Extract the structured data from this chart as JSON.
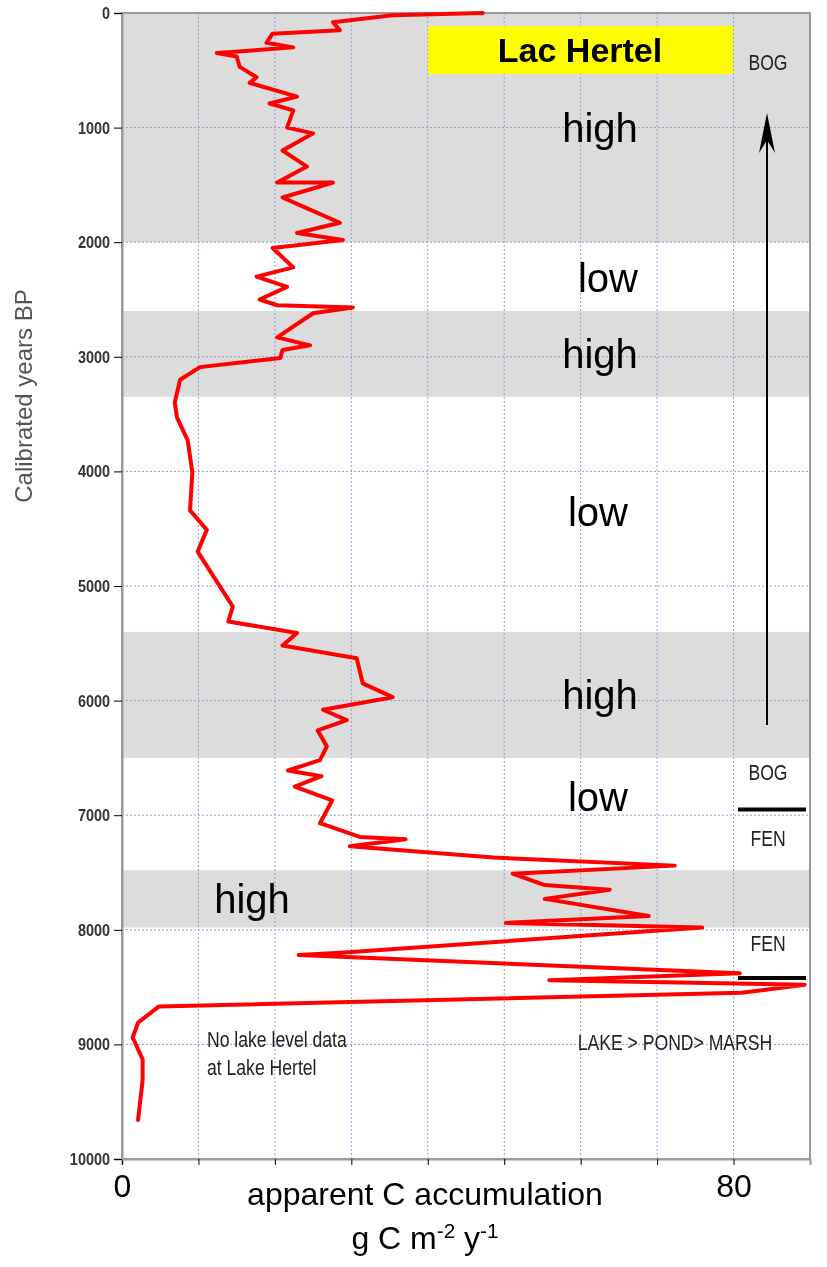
{
  "chart_data": {
    "type": "line",
    "title": "Lac Hertel",
    "xlabel": "apparent C accumulation\ng C m$^{-2}$ y$^{-1}$",
    "ylabel": "Calibrated years BP",
    "xlim": [
      0,
      90
    ],
    "xticks": [
      0,
      {
        "value": 10,
        "label": null
      },
      {
        "value": 20,
        "label": null
      },
      {
        "value": 30,
        "label": null
      },
      {
        "value": 40,
        "label": null
      },
      {
        "value": 50,
        "label": null
      },
      {
        "value": 60,
        "label": null
      },
      {
        "value": 70,
        "label": null
      },
      80
    ],
    "ylim": [
      10000,
      0
    ],
    "yticks": [
      0,
      1000,
      2000,
      3000,
      4000,
      5000,
      6000,
      7000,
      8000,
      9000,
      10000
    ],
    "grid": true,
    "series": [
      {
        "color": "#ff0000",
        "x": [
          47.2,
          35.4,
          27.6,
          28.5,
          19.7,
          18.9,
          22.4,
          12.4,
          15,
          15.4,
          17.6,
          16.7,
          22.9,
          19.3,
          22.4,
          21.6,
          25,
          21,
          24.2,
          20.3,
          27.6,
          21,
          23.7,
          28.5,
          22.9,
          28.9,
          19.7,
          22.4,
          17.6,
          21.6,
          18,
          20.3,
          30.2,
          25,
          20.3,
          24.6,
          21,
          20.7,
          10.2,
          7.6,
          6.9,
          7.2,
          8.6,
          9.2,
          8.9,
          11.1,
          9.9,
          14.5,
          13.9,
          22.9,
          21,
          30.7,
          31.5,
          35.4,
          26.3,
          29.4,
          25.6,
          26.8,
          25.9,
          21.7,
          26.1,
          22.6,
          27.5,
          25.9,
          31.1,
          37.1,
          29.8,
          48.6,
          72.3,
          51.1,
          55.3,
          63.8,
          55.3,
          68.9,
          50.2,
          75.9,
          60.8,
          28.6,
          23.1,
          80.8,
          55.9,
          89.3,
          81,
          4.8,
          2.1,
          1.4,
          2.7,
          2.7,
          2.1
        ],
        "values": [
          0,
          20,
          80,
          150,
          180,
          260,
          300,
          350,
          380,
          470,
          560,
          610,
          730,
          790,
          850,
          1000,
          1050,
          1200,
          1340,
          1480,
          1480,
          1610,
          1690,
          1830,
          1920,
          1980,
          2050,
          2220,
          2300,
          2390,
          2500,
          2550,
          2570,
          2620,
          2830,
          2900,
          2940,
          3010,
          3090,
          3200,
          3400,
          3530,
          3730,
          4010,
          4340,
          4510,
          4700,
          5180,
          5310,
          5410,
          5520,
          5630,
          5850,
          5970,
          6080,
          6170,
          6260,
          6400,
          6520,
          6610,
          6660,
          6750,
          6870,
          7070,
          7190,
          7210,
          7270,
          7370,
          7440,
          7510,
          7610,
          7650,
          7730,
          7880,
          7940,
          7980,
          8050,
          8200,
          8220,
          8380,
          8440,
          8480,
          8550,
          8670,
          8810,
          8940,
          9130,
          9310,
          9660
        ]
      }
    ],
    "bands": [
      {
        "axis": "y",
        "from": 0,
        "to": 2000,
        "color": "#dcdcdc",
        "label": "high"
      },
      {
        "axis": "y",
        "from": 2600,
        "to": 3350,
        "color": "#dcdcdc",
        "label": "high"
      },
      {
        "axis": "y",
        "from": 5400,
        "to": 6500,
        "color": "#dcdcdc",
        "label": "high"
      },
      {
        "axis": "y",
        "from": 7480,
        "to": 7980,
        "color": "#dcdcdc",
        "label": "high"
      }
    ],
    "ref_lines": [
      {
        "axis": "y",
        "value": 6950,
        "color": "#000000"
      },
      {
        "axis": "y",
        "value": 8420,
        "color": "#000000"
      }
    ],
    "annotations": [
      "low",
      "low",
      "low",
      "BOG",
      "BOG",
      "FEN",
      "FEN",
      "LAKE > POND> MARSH",
      "No lake level data\nat Lake Hertel"
    ]
  }
}
